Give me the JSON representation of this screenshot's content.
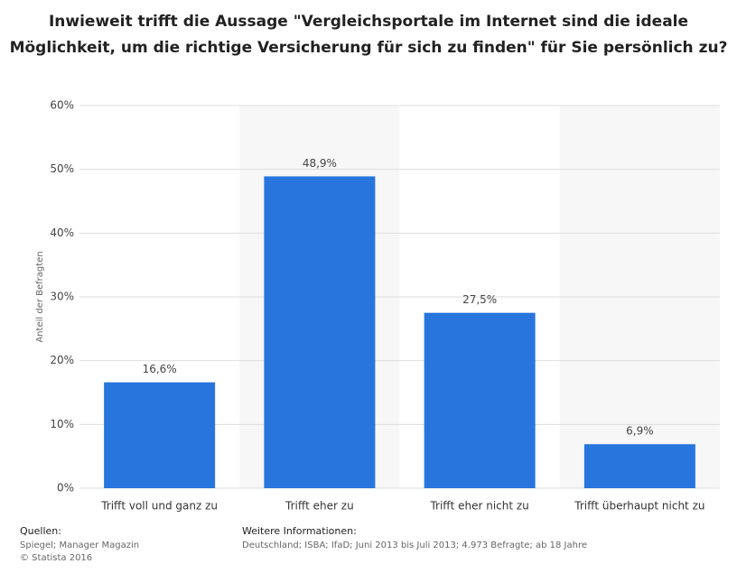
{
  "chart_data": {
    "type": "bar",
    "title": "Inwieweit trifft die Aussage \"Vergleichsportale im Internet sind die ideale Möglichkeit, um die richtige Versicherung für sich zu finden\" für Sie persönlich zu?",
    "y_axis_label": "Anteil der Befragten",
    "categories": [
      "Trifft voll und ganz zu",
      "Trifft eher zu",
      "Trifft eher nicht zu",
      "Trifft überhaupt nicht zu"
    ],
    "values": [
      16.6,
      48.9,
      27.5,
      6.9
    ],
    "value_labels": [
      "16,6%",
      "48,9%",
      "27,5%",
      "6,9%"
    ],
    "color": "#2875dd",
    "ylim": [
      0,
      60
    ],
    "yticks": [
      {
        "value": 0,
        "label": "0%"
      },
      {
        "value": 10,
        "label": "10%"
      },
      {
        "value": 20,
        "label": "20%"
      },
      {
        "value": 30,
        "label": "30%"
      },
      {
        "value": 40,
        "label": "40%"
      },
      {
        "value": 50,
        "label": "50%"
      },
      {
        "value": 60,
        "label": "60%"
      }
    ],
    "grid": true,
    "sources_heading": "Quellen:",
    "sources": "Spiegel; Manager Magazin",
    "copyright": "© Statista 2016",
    "info_heading": "Weitere Informationen:",
    "info": "Deutschland; ISBA; IfaD; Juni 2013 bis Juli 2013; 4.973 Befragte; ab 18 Jahre"
  }
}
